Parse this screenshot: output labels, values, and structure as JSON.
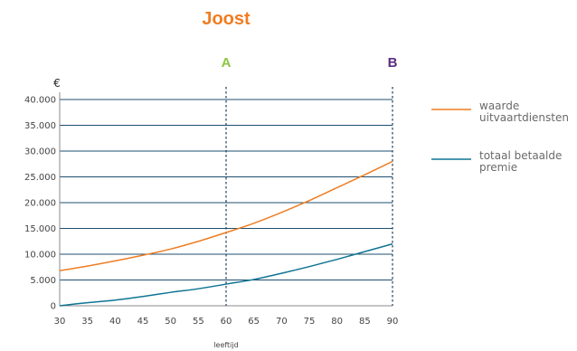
{
  "chart_data": {
    "type": "line",
    "title": "Joost",
    "ylabel": "€",
    "xlabel": "leeftijd",
    "x": [
      30,
      35,
      40,
      45,
      50,
      55,
      60,
      65,
      70,
      75,
      80,
      85,
      90
    ],
    "xlim": [
      30,
      90
    ],
    "ylim": [
      0,
      40000
    ],
    "ytick_step": 5000,
    "ytick_labels": [
      "0",
      "5.000",
      "10.000",
      "15.000",
      "20.000",
      "25.000",
      "30.000",
      "35.000",
      "40.000"
    ],
    "xtick_labels": [
      "30",
      "35",
      "40",
      "45",
      "50",
      "55",
      "60",
      "65",
      "70",
      "75",
      "80",
      "85",
      "90"
    ],
    "grid": true,
    "legend_position": "right",
    "markers": [
      {
        "label": "A",
        "x": 60,
        "color": "#8cc63f"
      },
      {
        "label": "B",
        "x": 90,
        "color": "#5b2d82"
      }
    ],
    "series": [
      {
        "name": "waarde uitvaartdiensten",
        "legend_lines": [
          "waarde",
          "uitvaartdiensten"
        ],
        "color": "#ef7d22",
        "values": [
          6800,
          7700,
          8700,
          9800,
          11000,
          12500,
          14200,
          16000,
          18100,
          20400,
          22900,
          25400,
          28000
        ]
      },
      {
        "name": "totaal betaalde premie",
        "legend_lines": [
          "totaal betaalde",
          "premie"
        ],
        "color": "#0f7493",
        "values": [
          0,
          600,
          1100,
          1800,
          2600,
          3300,
          4200,
          5100,
          6300,
          7600,
          9000,
          10500,
          12000
        ]
      }
    ]
  },
  "colors": {
    "title": "#ef7d22",
    "grid": "#1e4f6e",
    "axis_frame": "#8a8a8a"
  }
}
